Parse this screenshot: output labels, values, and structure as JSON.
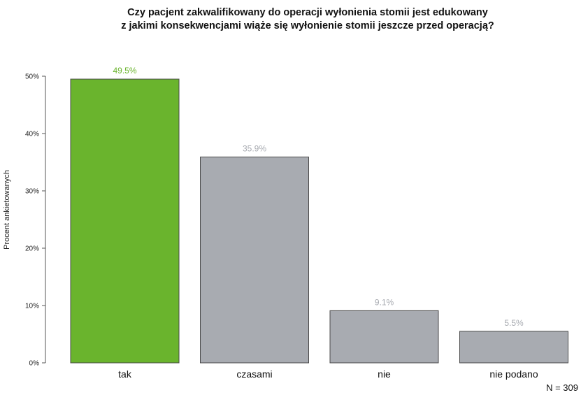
{
  "chart_data": {
    "type": "bar",
    "title_lines": [
      "Czy pacjent zakwalifikowany do operacji wyłonienia stomii jest edukowany",
      "z jakimi konsekwencjami wiąże się wyłonienie stomii jeszcze przed operacją?"
    ],
    "ylabel": "Procent ankietowanych",
    "xlabel": "",
    "categories": [
      "tak",
      "czasami",
      "nie",
      "nie podano"
    ],
    "values": [
      49.5,
      35.9,
      9.1,
      5.5
    ],
    "value_labels": [
      "49.5%",
      "35.9%",
      "9.1%",
      "5.5%"
    ],
    "bar_colors": [
      "#6ab42d",
      "#a8abb1",
      "#a8abb1",
      "#a8abb1"
    ],
    "label_colors": [
      "#6ab42d",
      "#a8abb1",
      "#a8abb1",
      "#a8abb1"
    ],
    "ylim": [
      0,
      50
    ],
    "yticks": [
      0,
      10,
      20,
      30,
      40,
      50
    ],
    "ytick_labels": [
      "0%",
      "10%",
      "20%",
      "30%",
      "40%",
      "50%"
    ],
    "grid": false,
    "legend": "none",
    "footnote": "N = 309"
  }
}
